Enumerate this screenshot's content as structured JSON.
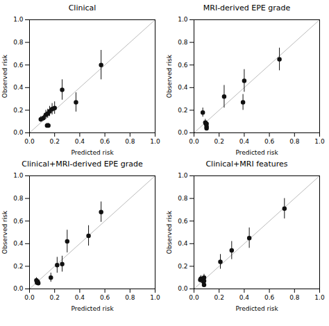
{
  "chart_data": [
    {
      "type": "scatter",
      "title": "Clinical",
      "xlabel": "Predicted risk",
      "ylabel": "Observed risk",
      "xlim": [
        0.0,
        1.0
      ],
      "ylim": [
        0.0,
        1.0
      ],
      "xticks": [
        {
          "value": 0.0,
          "label": "0.0"
        },
        0.2,
        0.4,
        0.6,
        0.8,
        {
          "value": 1.0,
          "label": "1.0"
        }
      ],
      "yticks": [
        {
          "value": 0.0,
          "label": "0.0"
        },
        0.2,
        0.4,
        0.6,
        0.8,
        {
          "value": 1.0,
          "label": "1.0"
        }
      ],
      "series": [
        {
          "type": "line",
          "color": "#bbbbbb",
          "x": [
            0,
            1
          ],
          "values": [
            0,
            1
          ]
        },
        {
          "type": "scatter",
          "color": "#111111",
          "marker": "circle",
          "x": [
            0.09,
            0.11,
            0.13,
            0.14,
            0.145,
            0.15,
            0.16,
            0.18,
            0.2,
            0.26,
            0.37,
            0.57
          ],
          "values": [
            0.12,
            0.13,
            0.16,
            0.065,
            0.17,
            0.065,
            0.19,
            0.21,
            0.22,
            0.38,
            0.27,
            0.6
          ],
          "yerr_lo": [
            0.025,
            0.025,
            0.04,
            0.02,
            0.04,
            0.02,
            0.045,
            0.05,
            0.055,
            0.09,
            0.085,
            0.13
          ],
          "yerr_hi": [
            0.025,
            0.025,
            0.04,
            0.02,
            0.04,
            0.02,
            0.045,
            0.05,
            0.055,
            0.09,
            0.085,
            0.13
          ]
        }
      ]
    },
    {
      "type": "scatter",
      "title": "MRI-derived EPE grade",
      "xlabel": "Predicted risk",
      "ylabel": "Observed risk",
      "xlim": [
        0.0,
        1.0
      ],
      "ylim": [
        0.0,
        1.0
      ],
      "xticks": [
        {
          "value": 0.0,
          "label": "0.0"
        },
        0.2,
        0.4,
        0.6,
        0.8,
        {
          "value": 1.0,
          "label": "1.0"
        }
      ],
      "yticks": [
        {
          "value": 0.0,
          "label": "0.0"
        },
        0.2,
        0.4,
        0.6,
        0.8,
        {
          "value": 1.0,
          "label": "1.0"
        }
      ],
      "series": [
        {
          "type": "line",
          "color": "#bbbbbb",
          "x": [
            0,
            1
          ],
          "values": [
            0,
            1
          ]
        },
        {
          "type": "scatter",
          "color": "#111111",
          "marker": "circle",
          "x": [
            0.07,
            0.09,
            0.095,
            0.1,
            0.1,
            0.1,
            0.24,
            0.39,
            0.4,
            0.68
          ],
          "values": [
            0.18,
            0.09,
            0.08,
            0.08,
            0.055,
            0.04,
            0.32,
            0.27,
            0.46,
            0.65
          ],
          "yerr_lo": [
            0.04,
            0.03,
            0.025,
            0.025,
            0.02,
            0.015,
            0.1,
            0.07,
            0.1,
            0.1
          ],
          "yerr_hi": [
            0.04,
            0.03,
            0.025,
            0.025,
            0.02,
            0.015,
            0.1,
            0.07,
            0.1,
            0.1
          ]
        }
      ]
    },
    {
      "type": "scatter",
      "title": "Clinical+MRI-derived EPE grade",
      "xlabel": "Predicted risk",
      "ylabel": "Observed risk",
      "xlim": [
        0.0,
        1.0
      ],
      "ylim": [
        0.0,
        1.0
      ],
      "xticks": [
        {
          "value": 0.0,
          "label": "0.0"
        },
        0.2,
        0.4,
        0.6,
        0.8,
        {
          "value": 1.0,
          "label": "1.0"
        }
      ],
      "yticks": [
        {
          "value": 0.0,
          "label": "0.0"
        },
        0.2,
        0.4,
        0.6,
        0.8,
        {
          "value": 1.0,
          "label": "1.0"
        }
      ],
      "series": [
        {
          "type": "line",
          "color": "#bbbbbb",
          "x": [
            0,
            1
          ],
          "values": [
            0,
            1
          ]
        },
        {
          "type": "scatter",
          "color": "#111111",
          "marker": "circle",
          "x": [
            0.055,
            0.06,
            0.065,
            0.07,
            0.17,
            0.22,
            0.26,
            0.3,
            0.47,
            0.57
          ],
          "values": [
            0.075,
            0.055,
            0.065,
            0.05,
            0.1,
            0.21,
            0.22,
            0.42,
            0.47,
            0.68
          ],
          "yerr_lo": [
            0.025,
            0.02,
            0.022,
            0.018,
            0.04,
            0.07,
            0.07,
            0.1,
            0.09,
            0.09
          ],
          "yerr_hi": [
            0.025,
            0.02,
            0.022,
            0.018,
            0.04,
            0.07,
            0.07,
            0.1,
            0.09,
            0.09
          ]
        }
      ]
    },
    {
      "type": "scatter",
      "title": "Clinical+MRI features",
      "xlabel": "Predicted risk",
      "ylabel": "Observed risk",
      "xlim": [
        0.0,
        1.0
      ],
      "ylim": [
        0.0,
        1.0
      ],
      "xticks": [
        {
          "value": 0.0,
          "label": "0.0"
        },
        0.2,
        0.4,
        0.6,
        0.8,
        {
          "value": 1.0,
          "label": "1.0"
        }
      ],
      "yticks": [
        {
          "value": 0.0,
          "label": "0.0"
        },
        0.2,
        0.4,
        0.6,
        0.8,
        {
          "value": 1.0,
          "label": "1.0"
        }
      ],
      "series": [
        {
          "type": "line",
          "color": "#bbbbbb",
          "x": [
            0,
            1
          ],
          "values": [
            0,
            1
          ]
        },
        {
          "type": "scatter",
          "color": "#111111",
          "marker": "circle",
          "x": [
            0.05,
            0.055,
            0.07,
            0.075,
            0.08,
            0.08,
            0.08,
            0.21,
            0.3,
            0.44,
            0.72
          ],
          "values": [
            0.08,
            0.09,
            0.08,
            0.065,
            0.035,
            0.07,
            0.1,
            0.24,
            0.34,
            0.45,
            0.71
          ],
          "yerr_lo": [
            0.025,
            0.028,
            0.025,
            0.02,
            0.015,
            0.022,
            0.03,
            0.065,
            0.08,
            0.09,
            0.09
          ],
          "yerr_hi": [
            0.025,
            0.028,
            0.025,
            0.02,
            0.015,
            0.022,
            0.03,
            0.065,
            0.08,
            0.09,
            0.09
          ]
        }
      ]
    }
  ]
}
